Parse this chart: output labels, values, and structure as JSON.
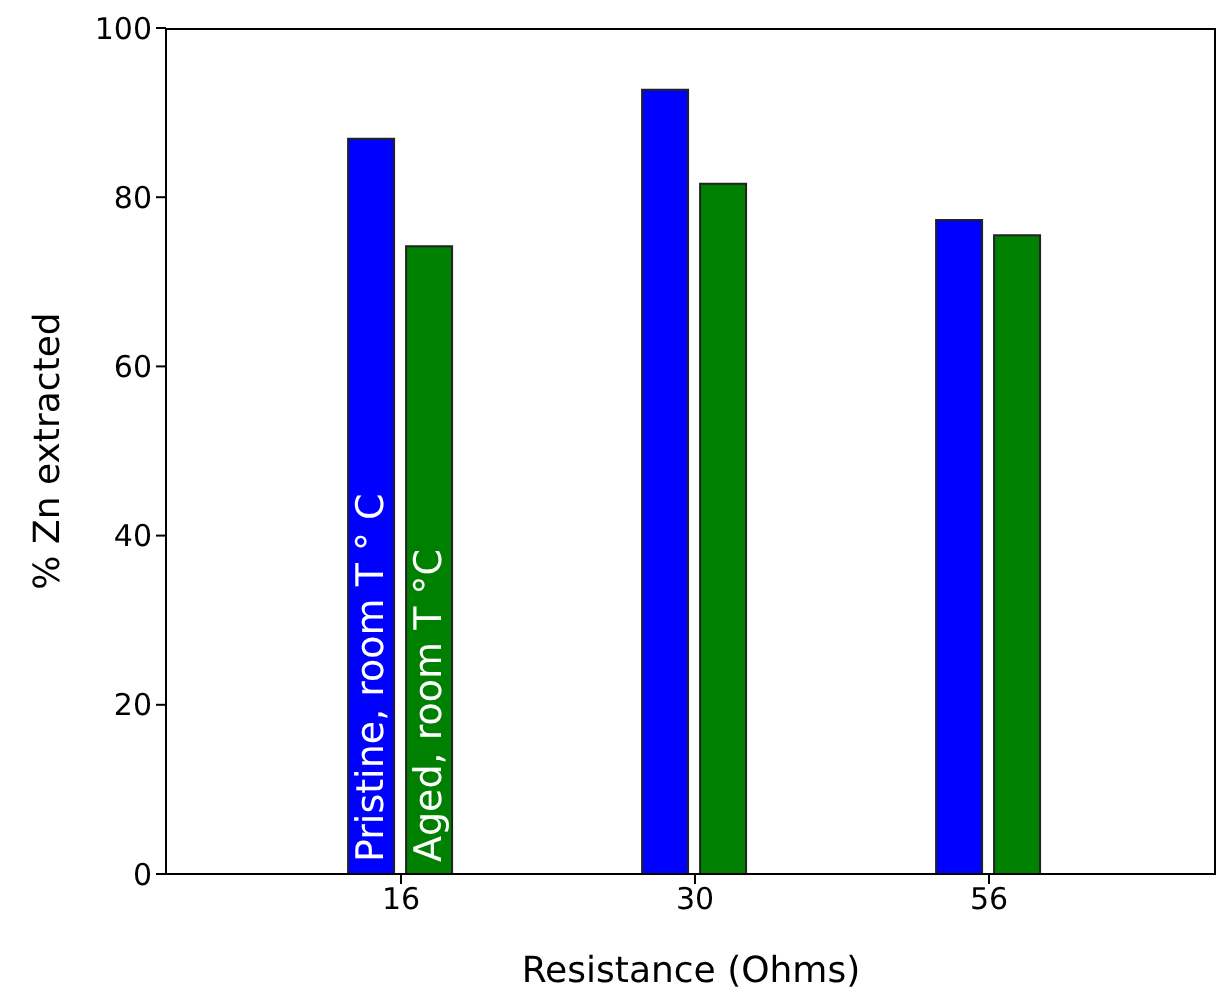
{
  "chart_data": {
    "type": "bar",
    "xlabel": "Resistance (Ohms)",
    "ylabel": "% Zn extracted",
    "categories": [
      "16",
      "30",
      "56"
    ],
    "series": [
      {
        "name": "Pristine, room T ° C",
        "color": "#0000ff",
        "values": [
          86.9,
          92.7,
          77.3
        ]
      },
      {
        "name": "Aged, room T °C",
        "color": "#008000",
        "values": [
          74.2,
          81.6,
          75.5
        ]
      }
    ],
    "ylim": [
      0,
      100
    ],
    "yticks": [
      0,
      20,
      40,
      60,
      80,
      100
    ],
    "legend": false
  }
}
